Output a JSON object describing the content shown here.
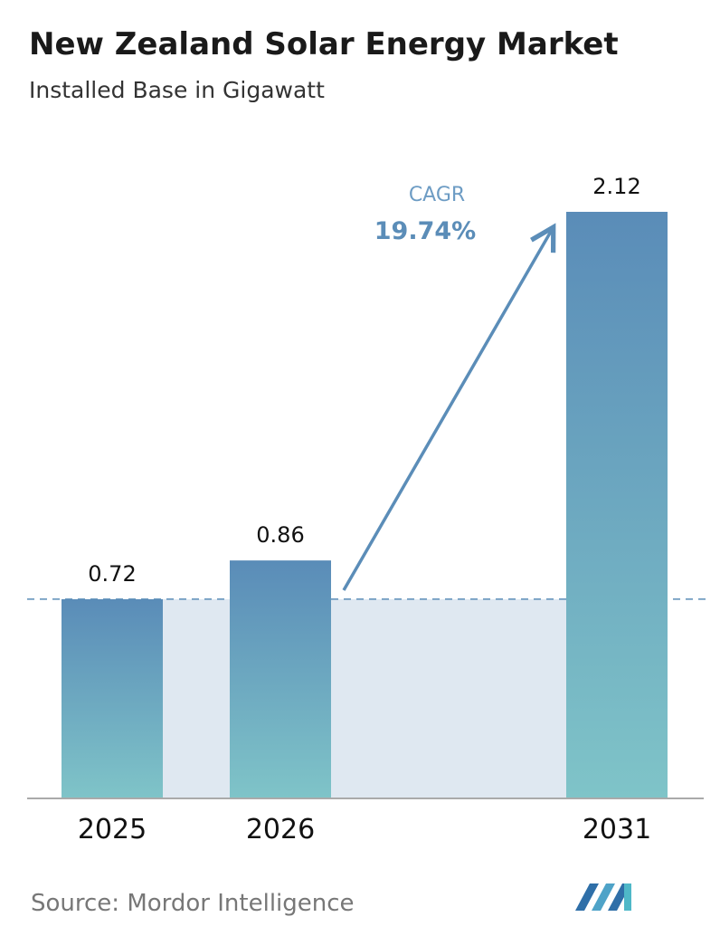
{
  "chart_data": {
    "type": "bar",
    "title": "New Zealand Solar Energy Market",
    "subtitle": "Installed Base in Gigawatt",
    "categories": [
      "2025",
      "2026",
      "2031"
    ],
    "values": [
      0.72,
      0.86,
      2.12
    ],
    "color_top": "#5a8cb8",
    "color_bottom": "#7fc4c8",
    "annotation": {
      "label": "CAGR",
      "value": "19.74%"
    },
    "source": "Source:  Mordor Intelligence"
  }
}
